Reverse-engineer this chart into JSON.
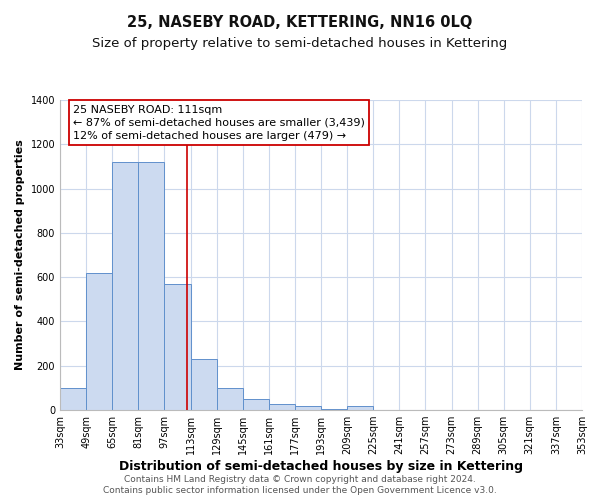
{
  "title": "25, NASEBY ROAD, KETTERING, NN16 0LQ",
  "subtitle": "Size of property relative to semi-detached houses in Kettering",
  "xlabel": "Distribution of semi-detached houses by size in Kettering",
  "ylabel": "Number of semi-detached properties",
  "bin_edges": [
    33,
    49,
    65,
    81,
    97,
    113,
    129,
    145,
    161,
    177,
    193,
    209,
    225,
    241,
    257,
    273,
    289,
    305,
    321,
    337,
    353
  ],
  "bar_heights": [
    100,
    620,
    1120,
    1120,
    570,
    230,
    100,
    50,
    25,
    20,
    5,
    20,
    0,
    0,
    0,
    0,
    0,
    0,
    0,
    0
  ],
  "bar_color": "#ccdaf0",
  "bar_edge_color": "#6090cc",
  "vline_x": 111,
  "vline_color": "#cc0000",
  "annotation_title": "25 NASEBY ROAD: 111sqm",
  "annotation_line1": "← 87% of semi-detached houses are smaller (3,439)",
  "annotation_line2": "12% of semi-detached houses are larger (479) →",
  "annotation_box_color": "#ffffff",
  "annotation_box_edge": "#cc0000",
  "ylim": [
    0,
    1400
  ],
  "yticks": [
    0,
    200,
    400,
    600,
    800,
    1000,
    1200,
    1400
  ],
  "xtick_labels": [
    "33sqm",
    "49sqm",
    "65sqm",
    "81sqm",
    "97sqm",
    "113sqm",
    "129sqm",
    "145sqm",
    "161sqm",
    "177sqm",
    "193sqm",
    "209sqm",
    "225sqm",
    "241sqm",
    "257sqm",
    "273sqm",
    "289sqm",
    "305sqm",
    "321sqm",
    "337sqm",
    "353sqm"
  ],
  "footer1": "Contains HM Land Registry data © Crown copyright and database right 2024.",
  "footer2": "Contains public sector information licensed under the Open Government Licence v3.0.",
  "bg_color": "#ffffff",
  "grid_color": "#ccd8ec",
  "title_fontsize": 10.5,
  "subtitle_fontsize": 9.5,
  "xlabel_fontsize": 9,
  "ylabel_fontsize": 8,
  "tick_fontsize": 7,
  "footer_fontsize": 6.5,
  "annot_fontsize": 8
}
